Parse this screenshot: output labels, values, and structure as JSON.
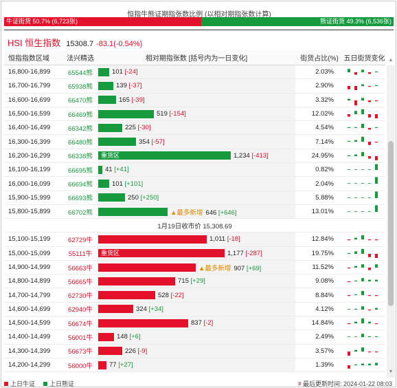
{
  "header": {
    "title": "恒指牛熊证期指张数比例 (以相对期指张数计算)",
    "bull_ratio_text": "牛证街货 50.7% (6,723张)",
    "bull_pct": 0.507,
    "bear_ratio_text": "熊证街货 49.3% (6,536张)"
  },
  "index": {
    "name": "HSI 恒生指数",
    "value": "15308.7",
    "change": "-83.1(-0.54%)"
  },
  "columns": {
    "range": "恒指指数区域",
    "code": "法兴精选",
    "bar": "相对期指张数 [括号内为一日变化]",
    "ratio": "街货占比(%)",
    "spark": "五日街货变化"
  },
  "colors": {
    "bull": "#e3122a",
    "bear": "#169a3e"
  },
  "bear_rows": [
    {
      "range": "16,800-16,899",
      "code": "65544熊",
      "value": 101,
      "num": "101",
      "chg": "[-24]",
      "chg_sign": "neg",
      "ratio": "2.03%",
      "spark": [
        4,
        -3,
        3,
        -2,
        1
      ]
    },
    {
      "range": "16,700-16,799",
      "code": "65938熊",
      "value": 139,
      "num": "139",
      "chg": "[-37]",
      "chg_sign": "neg",
      "ratio": "2.90%",
      "spark": [
        -4,
        -5,
        2,
        -1,
        1
      ]
    },
    {
      "range": "16,600-16,699",
      "code": "66470熊",
      "value": 165,
      "num": "165",
      "chg": "[-39]",
      "chg_sign": "neg",
      "ratio": "3.32%",
      "spark": [
        2,
        -6,
        3,
        -2,
        -1
      ]
    },
    {
      "range": "16,500-16,599",
      "code": "66469熊",
      "value": 519,
      "num": "519",
      "chg": "[-154]",
      "chg_sign": "neg",
      "ratio": "12.02%",
      "spark": [
        -3,
        4,
        6,
        -4,
        -5
      ]
    },
    {
      "range": "16,400-16,499",
      "code": "66342熊",
      "value": 225,
      "num": "225",
      "chg": "[-30]",
      "chg_sign": "neg",
      "ratio": "4.54%",
      "spark": [
        1,
        1,
        5,
        -2,
        1
      ]
    },
    {
      "range": "16,300-16,399",
      "code": "66480熊",
      "value": 354,
      "num": "354",
      "chg": "[-57]",
      "chg_sign": "neg",
      "ratio": "7.14%",
      "spark": [
        1,
        2,
        6,
        -4,
        -1
      ]
    },
    {
      "range": "16,200-16,299",
      "code": "66338熊",
      "value": 1234,
      "num": "1,234",
      "chg": "[-413]",
      "chg_sign": "neg",
      "ratio": "24.95%",
      "label": "重货区",
      "spark": [
        1,
        2,
        5,
        -3,
        -5
      ]
    },
    {
      "range": "16,100-16,199",
      "code": "66695熊",
      "value": 41,
      "num": "41",
      "chg": "[+41]",
      "chg_sign": "pos",
      "ratio": "0.82%",
      "spark": [
        0,
        0,
        0,
        0,
        7
      ]
    },
    {
      "range": "16,000-16,099",
      "code": "66694熊",
      "value": 101,
      "num": "101",
      "chg": "[+101]",
      "chg_sign": "pos",
      "ratio": "2.04%",
      "spark": [
        0,
        0,
        0,
        0,
        8
      ]
    },
    {
      "range": "15,900-15,999",
      "code": "66693熊",
      "value": 250,
      "num": "250",
      "chg": "[+250]",
      "chg_sign": "pos",
      "ratio": "5.88%",
      "spark": [
        0,
        0,
        0,
        0,
        8
      ]
    },
    {
      "range": "15,800-15,899",
      "code": "66702熊",
      "value": 646,
      "num": "646",
      "chg": "[+646]",
      "chg_sign": "pos",
      "ratio": "13.01%",
      "tag": "▲最多新增",
      "spark": [
        0,
        0,
        0,
        0,
        8
      ]
    }
  ],
  "close_note": "1月19日收市价 15,308.69",
  "bull_rows": [
    {
      "range": "15,100-15,199",
      "code": "62729牛",
      "value": 1011,
      "num": "1,011",
      "chg": "[-18]",
      "chg_sign": "neg",
      "ratio": "12.84%",
      "spark": [
        -1,
        2,
        5,
        -1,
        -1
      ]
    },
    {
      "range": "15,000-15,099",
      "code": "55111牛",
      "value": 1177,
      "num": "1,177",
      "chg": "[-287]",
      "chg_sign": "neg",
      "ratio": "19.75%",
      "label": "重货区",
      "spark": [
        1,
        3,
        6,
        -4,
        -5
      ]
    },
    {
      "range": "14,900-14,999",
      "code": "56663牛",
      "value": 907,
      "num": "907",
      "chg": "[+69]",
      "chg_sign": "pos",
      "ratio": "11.52%",
      "tag": "▲最多新增",
      "spark": [
        -1,
        2,
        4,
        -3,
        4
      ]
    },
    {
      "range": "14,800-14,899",
      "code": "56665牛",
      "value": 715,
      "num": "715",
      "chg": "[+29]",
      "chg_sign": "pos",
      "ratio": "9.08%",
      "spark": [
        -1,
        1,
        4,
        2,
        2
      ]
    },
    {
      "range": "14,700-14,799",
      "code": "62730牛",
      "value": 528,
      "num": "528",
      "chg": "[-22]",
      "chg_sign": "neg",
      "ratio": "8.84%",
      "spark": [
        -1,
        1,
        5,
        -1,
        -1
      ]
    },
    {
      "range": "14,600-14,699",
      "code": "62940牛",
      "value": 324,
      "num": "324",
      "chg": "[+34]",
      "chg_sign": "pos",
      "ratio": "4.12%",
      "spark": [
        0,
        1,
        4,
        -1,
        2
      ]
    },
    {
      "range": "14,500-14,599",
      "code": "56674牛",
      "value": 837,
      "num": "837",
      "chg": "[-2]",
      "chg_sign": "neg",
      "ratio": "14.84%",
      "spark": [
        -1,
        2,
        6,
        2,
        -1
      ]
    },
    {
      "range": "14,400-14,499",
      "code": "56001牛",
      "value": 148,
      "num": "148",
      "chg": "[+6]",
      "chg_sign": "pos",
      "ratio": "2.49%",
      "spark": [
        0,
        0,
        4,
        1,
        1
      ]
    },
    {
      "range": "14,300-14,399",
      "code": "56673牛",
      "value": 226,
      "num": "226",
      "chg": "[-9]",
      "chg_sign": "neg",
      "ratio": "3.57%",
      "spark": [
        -5,
        2,
        5,
        -1,
        -1
      ]
    },
    {
      "range": "14,200-14,299",
      "code": "56000牛",
      "value": 77,
      "num": "77",
      "chg": "[+27]",
      "chg_sign": "pos",
      "ratio": "1.39%",
      "spark": [
        -4,
        1,
        2,
        2,
        3
      ]
    }
  ],
  "footer": {
    "legend_bull": "上日牛证",
    "legend_bear": "上日熊证",
    "updated": "最后更新时间: 2024-01-22 08:03",
    "hash": "#"
  }
}
